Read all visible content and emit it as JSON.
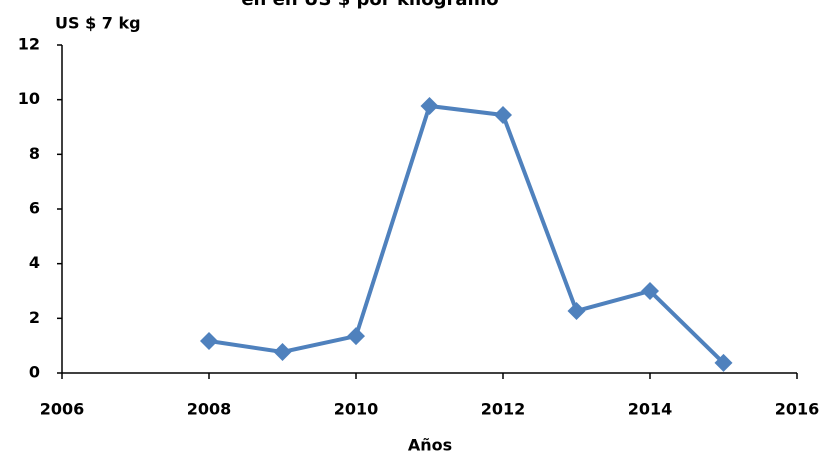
{
  "chart_data": {
    "type": "line",
    "title": "en en US $ por kilogramo",
    "y_axis_label": "US $ 7 kg",
    "x_axis_label": "Años",
    "series": [
      {
        "name": "US $ 7 kg",
        "color": "#4f81bd",
        "x": [
          2008,
          2009,
          2010,
          2011,
          2012,
          2013,
          2014,
          2015
        ],
        "values": [
          1.17,
          0.77,
          1.35,
          9.77,
          9.44,
          2.27,
          3.0,
          0.37
        ]
      }
    ],
    "xlim": [
      2006,
      2016
    ],
    "xticks": [
      2006,
      2008,
      2010,
      2012,
      2014,
      2016
    ],
    "ylim": [
      0,
      12
    ],
    "yticks": [
      0,
      2,
      4,
      6,
      8,
      10,
      12
    ]
  }
}
